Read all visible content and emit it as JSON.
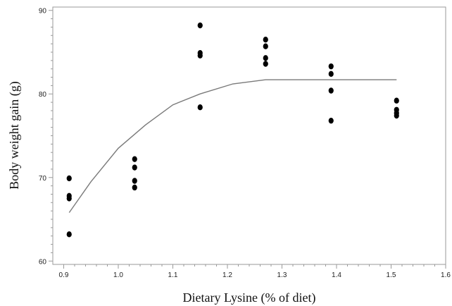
{
  "chart_data": {
    "type": "scatter",
    "title": "",
    "xlabel": "Dietary Lysine (% of diet)",
    "ylabel": "Body weight gain (g)",
    "xlim": [
      0.88,
      1.6
    ],
    "ylim": [
      59.6,
      90.4
    ],
    "xticks": [
      "0.9",
      "1.0",
      "1.1",
      "1.2",
      "1.3",
      "1.4",
      "1.5",
      "1.6"
    ],
    "yticks": [
      "60",
      "70",
      "80",
      "90"
    ],
    "grid": false,
    "legend": "none",
    "colors": {
      "points": "#000000",
      "curve": "#7a7a7a",
      "frame": "#9a9a9a"
    },
    "series": [
      {
        "kind": "observed",
        "points": [
          {
            "x": 0.91,
            "y": 69.9
          },
          {
            "x": 0.91,
            "y": 67.8
          },
          {
            "x": 0.91,
            "y": 67.5
          },
          {
            "x": 0.91,
            "y": 63.2
          },
          {
            "x": 1.03,
            "y": 72.2
          },
          {
            "x": 1.03,
            "y": 71.2
          },
          {
            "x": 1.03,
            "y": 69.6
          },
          {
            "x": 1.03,
            "y": 68.8
          },
          {
            "x": 1.15,
            "y": 88.2
          },
          {
            "x": 1.15,
            "y": 84.9
          },
          {
            "x": 1.15,
            "y": 84.6
          },
          {
            "x": 1.15,
            "y": 78.4
          },
          {
            "x": 1.27,
            "y": 86.5
          },
          {
            "x": 1.27,
            "y": 85.7
          },
          {
            "x": 1.27,
            "y": 84.3
          },
          {
            "x": 1.27,
            "y": 83.6
          },
          {
            "x": 1.39,
            "y": 83.3
          },
          {
            "x": 1.39,
            "y": 82.4
          },
          {
            "x": 1.39,
            "y": 80.4
          },
          {
            "x": 1.39,
            "y": 76.8
          },
          {
            "x": 1.51,
            "y": 79.2
          },
          {
            "x": 1.51,
            "y": 78.1
          },
          {
            "x": 1.51,
            "y": 77.7
          },
          {
            "x": 1.51,
            "y": 77.4
          }
        ]
      },
      {
        "kind": "fitted",
        "points": [
          {
            "x": 0.91,
            "y": 65.8
          },
          {
            "x": 0.95,
            "y": 69.5
          },
          {
            "x": 1.0,
            "y": 73.5
          },
          {
            "x": 1.05,
            "y": 76.3
          },
          {
            "x": 1.1,
            "y": 78.7
          },
          {
            "x": 1.15,
            "y": 80.0
          },
          {
            "x": 1.21,
            "y": 81.2
          },
          {
            "x": 1.27,
            "y": 81.7
          },
          {
            "x": 1.51,
            "y": 81.7
          }
        ]
      }
    ]
  }
}
